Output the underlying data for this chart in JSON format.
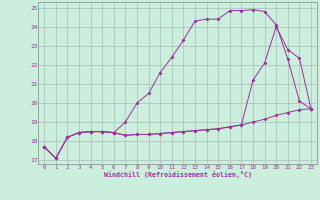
{
  "xlabel": "Windchill (Refroidissement éolien,°C)",
  "background_color": "#cceedd",
  "line_color": "#993399",
  "grid_color": "#aabbbb",
  "xlim": [
    -0.5,
    23.5
  ],
  "ylim": [
    16.8,
    25.3
  ],
  "yticks": [
    17,
    18,
    19,
    20,
    21,
    22,
    23,
    24,
    25
  ],
  "xticks": [
    0,
    1,
    2,
    3,
    4,
    5,
    6,
    7,
    8,
    9,
    10,
    11,
    12,
    13,
    14,
    15,
    16,
    17,
    18,
    19,
    20,
    21,
    22,
    23
  ],
  "hours": [
    0,
    1,
    2,
    3,
    4,
    5,
    6,
    7,
    8,
    9,
    10,
    11,
    12,
    13,
    14,
    15,
    16,
    17,
    18,
    19,
    20,
    21,
    22,
    23
  ],
  "line1": [
    17.7,
    17.1,
    18.2,
    18.45,
    18.5,
    18.5,
    18.45,
    18.3,
    18.35,
    18.35,
    18.4,
    18.45,
    18.5,
    18.55,
    18.6,
    18.65,
    18.75,
    18.85,
    19.0,
    19.15,
    19.35,
    19.5,
    19.65,
    19.7
  ],
  "line2": [
    17.7,
    17.1,
    18.2,
    18.45,
    18.5,
    18.5,
    18.45,
    19.0,
    20.0,
    20.5,
    21.6,
    22.4,
    23.3,
    24.3,
    24.4,
    24.4,
    24.85,
    24.85,
    24.9,
    24.8,
    24.1,
    22.3,
    20.1,
    19.7
  ],
  "line3": [
    17.7,
    17.1,
    18.2,
    18.45,
    18.5,
    18.5,
    18.45,
    18.3,
    18.35,
    18.35,
    18.4,
    18.45,
    18.5,
    18.55,
    18.6,
    18.65,
    18.75,
    18.85,
    21.2,
    22.1,
    24.0,
    22.8,
    22.35,
    19.7
  ]
}
